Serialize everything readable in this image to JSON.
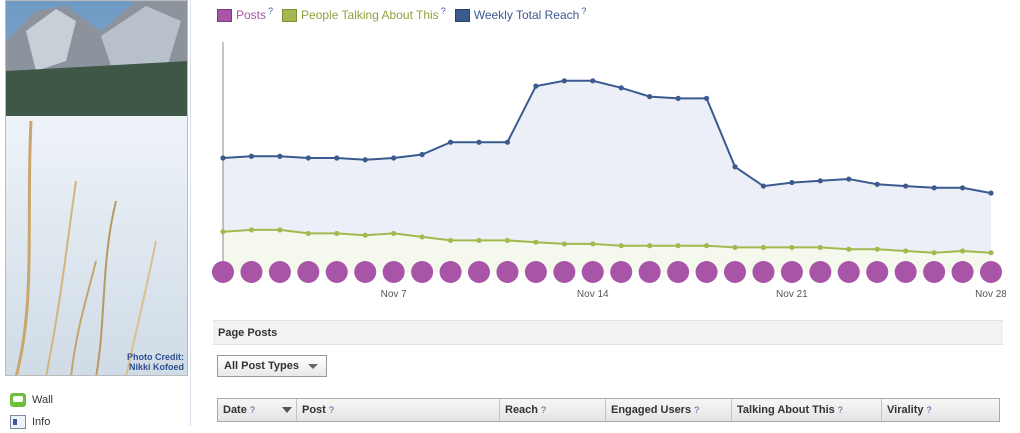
{
  "cover": {
    "credit_line1": "Photo Credit:",
    "credit_line2": "Nikki Kofoed"
  },
  "sidebar": {
    "items": [
      {
        "label": "Wall",
        "icon": "wall-icon"
      },
      {
        "label": "Info",
        "icon": "info-icon"
      }
    ]
  },
  "legend": {
    "items": [
      {
        "label": "Posts",
        "q": "?",
        "color": "#a855a7"
      },
      {
        "label": "People Talking About This",
        "q": "?",
        "color": "#a3b94f"
      },
      {
        "label": "Weekly Total Reach",
        "q": "?",
        "color": "#3b5a8f"
      }
    ]
  },
  "chart_data": {
    "type": "line",
    "x_tick_labels": [
      "Nov 7",
      "Nov 14",
      "Nov 21",
      "Nov 28"
    ],
    "series": [
      {
        "name": "Weekly Total Reach",
        "color": "#3b5a8f",
        "values": [
          65,
          66,
          66,
          65,
          65,
          64,
          65,
          67,
          74,
          74,
          74,
          106,
          109,
          109,
          105,
          100,
          99,
          99,
          60,
          49,
          51,
          52,
          53,
          50,
          49,
          48,
          48,
          45
        ]
      },
      {
        "name": "People Talking About This",
        "color": "#a3b94f",
        "values": [
          23,
          24,
          24,
          22,
          22,
          21,
          22,
          20,
          18,
          18,
          18,
          17,
          16,
          16,
          15,
          15,
          15,
          15,
          14,
          14,
          14,
          14,
          13,
          13,
          12,
          11,
          12,
          11
        ]
      },
      {
        "name": "Posts",
        "color": "#a855a7",
        "values": [
          1,
          1,
          1,
          1,
          1,
          1,
          1,
          1,
          1,
          1,
          1,
          1,
          1,
          1,
          1,
          1,
          1,
          1,
          1,
          1,
          1,
          1,
          1,
          1,
          1,
          1,
          1,
          1
        ]
      }
    ],
    "ylim": [
      0,
      130
    ],
    "grid": false,
    "legend": "top-left"
  },
  "posts": {
    "header": "Page Posts",
    "filter": "All Post Types",
    "columns": [
      {
        "label": "Date",
        "q": "?",
        "sort": true
      },
      {
        "label": "Post",
        "q": "?"
      },
      {
        "label": "Reach",
        "q": "?"
      },
      {
        "label": "Engaged Users",
        "q": "?"
      },
      {
        "label": "Talking About This",
        "q": "?"
      },
      {
        "label": "Virality",
        "q": "?"
      }
    ]
  }
}
